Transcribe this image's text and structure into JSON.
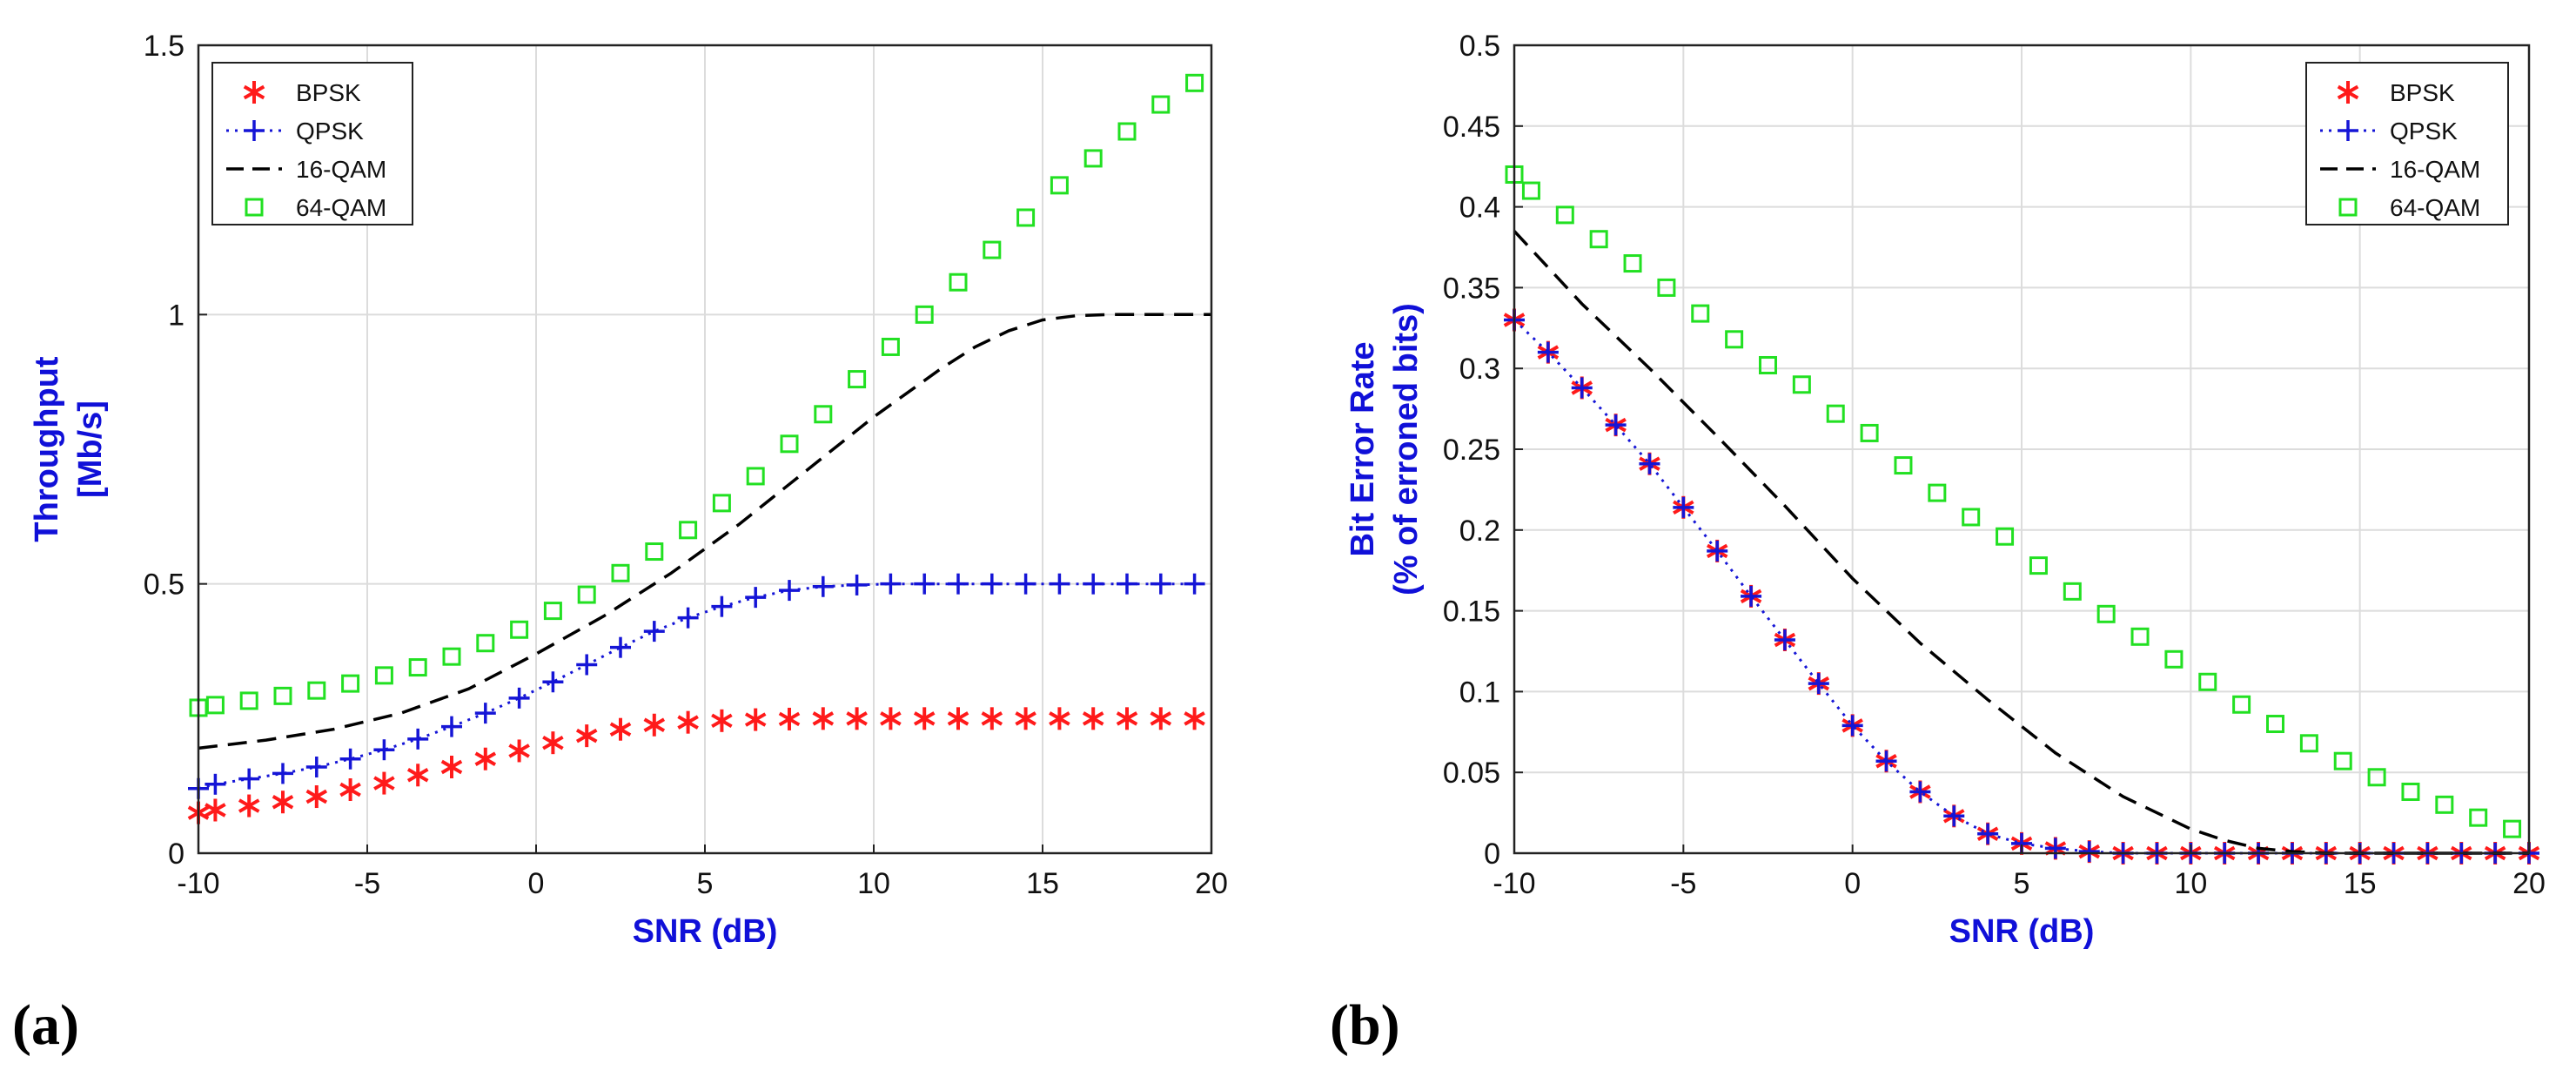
{
  "panel_labels": {
    "a": "(a)",
    "b": "(b)"
  },
  "colors": {
    "bpsk": "#ff1a1a",
    "qpsk": "#1515d6",
    "qam16": "#000000",
    "qam64": "#22e022",
    "axis_title": "#1010d8"
  },
  "chart_data": [
    {
      "type": "line",
      "title": "",
      "xlabel": "SNR (dB)",
      "ylabel_lines": [
        "Throughput",
        "[Mb/s]"
      ],
      "xlim": [
        -10,
        20
      ],
      "ylim": [
        0,
        1.5
      ],
      "xticks": [
        -10,
        -5,
        0,
        5,
        10,
        15,
        20
      ],
      "xtick_labels": [
        "-10",
        "-5",
        "0",
        "5",
        "10",
        "15",
        "20"
      ],
      "yticks": [
        0,
        0.5,
        1,
        1.5
      ],
      "ytick_labels": [
        "0",
        "0.5",
        "1",
        "1.5"
      ],
      "grid": true,
      "legend_position": "top-left",
      "series": [
        {
          "name": "BPSK",
          "style": "star",
          "x": [
            -10,
            -9.5,
            -8.5,
            -7.5,
            -6.5,
            -5.5,
            -4.5,
            -3.5,
            -2.5,
            -1.5,
            -0.5,
            0.5,
            1.5,
            2.5,
            3.5,
            4.5,
            5.5,
            6.5,
            7.5,
            8.5,
            9.5,
            10.5,
            11.5,
            12.5,
            13.5,
            14.5,
            15.5,
            16.5,
            17.5,
            18.5,
            19.5
          ],
          "y": [
            0.075,
            0.08,
            0.088,
            0.095,
            0.105,
            0.118,
            0.13,
            0.145,
            0.16,
            0.175,
            0.19,
            0.205,
            0.218,
            0.23,
            0.238,
            0.243,
            0.246,
            0.248,
            0.249,
            0.25,
            0.25,
            0.25,
            0.25,
            0.25,
            0.25,
            0.25,
            0.25,
            0.25,
            0.25,
            0.25,
            0.25
          ]
        },
        {
          "name": "QPSK",
          "style": "dotted-plus",
          "x": [
            -10,
            -9.5,
            -8.5,
            -7.5,
            -6.5,
            -5.5,
            -4.5,
            -3.5,
            -2.5,
            -1.5,
            -0.5,
            0.5,
            1.5,
            2.5,
            3.5,
            4.5,
            5.5,
            6.5,
            7.5,
            8.5,
            9.5,
            10.5,
            11.5,
            12.5,
            13.5,
            14.5,
            15.5,
            16.5,
            17.5,
            18.5,
            19.5
          ],
          "y": [
            0.12,
            0.128,
            0.138,
            0.148,
            0.16,
            0.175,
            0.192,
            0.212,
            0.235,
            0.26,
            0.288,
            0.318,
            0.35,
            0.382,
            0.412,
            0.437,
            0.458,
            0.475,
            0.488,
            0.495,
            0.498,
            0.5,
            0.5,
            0.5,
            0.5,
            0.5,
            0.5,
            0.5,
            0.5,
            0.5,
            0.5
          ]
        },
        {
          "name": "16-QAM",
          "style": "dashed",
          "x": [
            -10,
            -8,
            -6,
            -4,
            -2,
            0,
            2,
            4,
            6,
            8,
            10,
            12,
            13,
            14,
            15,
            16,
            17,
            18,
            19,
            20
          ],
          "y": [
            0.195,
            0.21,
            0.23,
            0.26,
            0.305,
            0.37,
            0.44,
            0.52,
            0.61,
            0.71,
            0.81,
            0.9,
            0.94,
            0.97,
            0.99,
            0.998,
            1.0,
            1.0,
            1.0,
            1.0
          ]
        },
        {
          "name": "64-QAM",
          "style": "square",
          "x": [
            -10,
            -9.5,
            -8.5,
            -7.5,
            -6.5,
            -5.5,
            -4.5,
            -3.5,
            -2.5,
            -1.5,
            -0.5,
            0.5,
            1.5,
            2.5,
            3.5,
            4.5,
            5.5,
            6.5,
            7.5,
            8.5,
            9.5,
            10.5,
            11.5,
            12.5,
            13.5,
            14.5,
            15.5,
            16.5,
            17.5,
            18.5,
            19.5
          ],
          "y": [
            0.27,
            0.275,
            0.283,
            0.292,
            0.302,
            0.315,
            0.33,
            0.345,
            0.365,
            0.39,
            0.415,
            0.45,
            0.48,
            0.52,
            0.56,
            0.6,
            0.65,
            0.7,
            0.76,
            0.815,
            0.88,
            0.94,
            1.0,
            1.06,
            1.12,
            1.18,
            1.24,
            1.29,
            1.34,
            1.39,
            1.43
          ]
        }
      ]
    },
    {
      "type": "line",
      "title": "",
      "xlabel": "SNR (dB)",
      "ylabel_lines": [
        "Bit Error Rate",
        "(% of erroned bits)"
      ],
      "xlim": [
        -10,
        20
      ],
      "ylim": [
        0,
        0.5
      ],
      "xticks": [
        -10,
        -5,
        0,
        5,
        10,
        15,
        20
      ],
      "xtick_labels": [
        "-10",
        "-5",
        "0",
        "5",
        "10",
        "15",
        "20"
      ],
      "yticks": [
        0,
        0.05,
        0.1,
        0.15,
        0.2,
        0.25,
        0.3,
        0.35,
        0.4,
        0.45,
        0.5
      ],
      "ytick_labels": [
        "0",
        "0.05",
        "0.1",
        "0.15",
        "0.2",
        "0.25",
        "0.3",
        "0.35",
        "0.4",
        "0.45",
        "0.5"
      ],
      "grid": true,
      "legend_position": "top-right",
      "series": [
        {
          "name": "BPSK",
          "style": "star",
          "x": [
            -10,
            -9,
            -8,
            -7,
            -6,
            -5,
            -4,
            -3,
            -2,
            -1,
            0,
            1,
            2,
            3,
            4,
            5,
            6,
            7,
            8,
            9,
            10,
            11,
            12,
            13,
            14,
            15,
            16,
            17,
            18,
            19,
            20
          ],
          "y": [
            0.33,
            0.31,
            0.288,
            0.265,
            0.241,
            0.214,
            0.187,
            0.159,
            0.132,
            0.105,
            0.079,
            0.057,
            0.038,
            0.023,
            0.012,
            0.006,
            0.003,
            0.001,
            0.0,
            0.0,
            0.0,
            0.0,
            0.0,
            0.0,
            0.0,
            0.0,
            0.0,
            0.0,
            0.0,
            0.0,
            0.0
          ]
        },
        {
          "name": "QPSK",
          "style": "dotted-plus",
          "x": [
            -10,
            -9,
            -8,
            -7,
            -6,
            -5,
            -4,
            -3,
            -2,
            -1,
            0,
            1,
            2,
            3,
            4,
            5,
            6,
            7,
            8,
            9,
            10,
            11,
            12,
            13,
            14,
            15,
            16,
            17,
            18,
            19,
            20
          ],
          "y": [
            0.33,
            0.31,
            0.288,
            0.265,
            0.241,
            0.214,
            0.187,
            0.159,
            0.132,
            0.105,
            0.079,
            0.057,
            0.038,
            0.023,
            0.012,
            0.006,
            0.003,
            0.001,
            0.0,
            0.0,
            0.0,
            0.0,
            0.0,
            0.0,
            0.0,
            0.0,
            0.0,
            0.0,
            0.0,
            0.0,
            0.0
          ]
        },
        {
          "name": "16-QAM",
          "style": "dashed",
          "x": [
            -10,
            -8,
            -6,
            -4,
            -2,
            0,
            2,
            4,
            6,
            8,
            10,
            11,
            12,
            13,
            14,
            16,
            18,
            20
          ],
          "y": [
            0.385,
            0.34,
            0.3,
            0.258,
            0.215,
            0.17,
            0.13,
            0.095,
            0.062,
            0.035,
            0.015,
            0.008,
            0.003,
            0.001,
            0.0,
            0.0,
            0.0,
            0.0
          ]
        },
        {
          "name": "64-QAM",
          "style": "square",
          "x": [
            -10,
            -9.5,
            -8.5,
            -7.5,
            -6.5,
            -5.5,
            -4.5,
            -3.5,
            -2.5,
            -1.5,
            -0.5,
            0.5,
            1.5,
            2.5,
            3.5,
            4.5,
            5.5,
            6.5,
            7.5,
            8.5,
            9.5,
            10.5,
            11.5,
            12.5,
            13.5,
            14.5,
            15.5,
            16.5,
            17.5,
            18.5,
            19.5
          ],
          "y": [
            0.42,
            0.41,
            0.395,
            0.38,
            0.365,
            0.35,
            0.334,
            0.318,
            0.302,
            0.29,
            0.272,
            0.26,
            0.24,
            0.223,
            0.208,
            0.196,
            0.178,
            0.162,
            0.148,
            0.134,
            0.12,
            0.106,
            0.092,
            0.08,
            0.068,
            0.057,
            0.047,
            0.038,
            0.03,
            0.022,
            0.015
          ]
        }
      ]
    }
  ]
}
